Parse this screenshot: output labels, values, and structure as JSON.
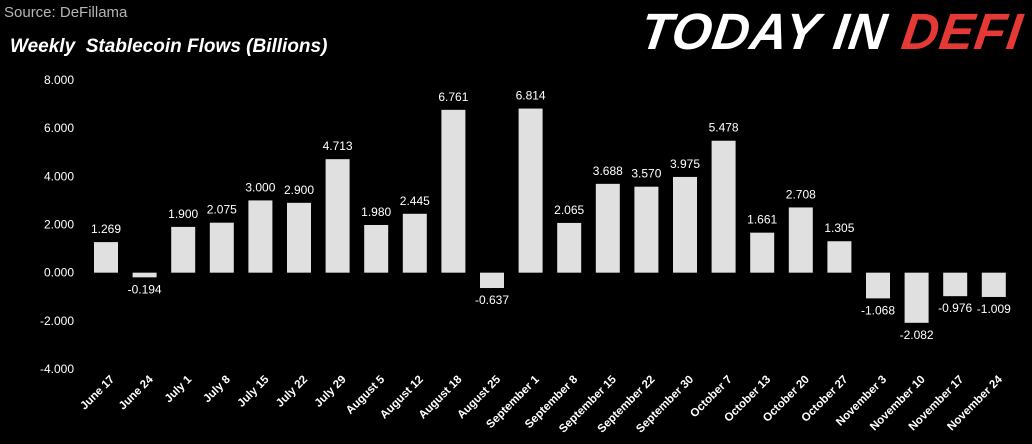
{
  "source": "Source: DeFillama",
  "brand": {
    "part1": "TODAY IN ",
    "part2": "DEFI",
    "accent_color": "#e53935"
  },
  "chart_data": {
    "type": "bar",
    "title": "Weekly  Stablecoin Flows (Billions)",
    "categories": [
      "June 17",
      "June 24",
      "July 1",
      "July 8",
      "July 15",
      "July 22",
      "July 29",
      "August 5",
      "August 12",
      "August 18",
      "August 25",
      "September 1",
      "September 8",
      "September 15",
      "September 22",
      "September 30",
      "October 7",
      "October 13",
      "October 20",
      "October 27",
      "November 3",
      "November 10",
      "November 17",
      "November 24"
    ],
    "values": [
      1.269,
      -0.194,
      1.9,
      2.075,
      3.0,
      2.9,
      4.713,
      1.98,
      2.445,
      6.761,
      -0.637,
      6.814,
      2.065,
      3.688,
      3.57,
      3.975,
      5.478,
      1.661,
      2.708,
      1.305,
      -1.068,
      -2.082,
      -0.976,
      -1.009
    ],
    "value_labels": [
      "1.269",
      "-0.194",
      "1.900",
      "2.075",
      "3.000",
      "2.900",
      "4.713",
      "1.980",
      "2.445",
      "6.761",
      "-0.637",
      "6.814",
      "2.065",
      "3.688",
      "3.570",
      "3.975",
      "5.478",
      "1.661",
      "2.708",
      "1.305",
      "-1.068",
      "-2.082",
      "-0.976",
      "-1.009"
    ],
    "ylim": [
      -4,
      8
    ],
    "yticks": [
      "8.000",
      "6.000",
      "4.000",
      "2.000",
      "0.000",
      "-2.000",
      "-4.000"
    ],
    "ytick_values": [
      8,
      6,
      4,
      2,
      0,
      -2,
      -4
    ],
    "bar_color": "#e0e0e0",
    "background": "#000000",
    "grid": false,
    "legend": "none"
  }
}
